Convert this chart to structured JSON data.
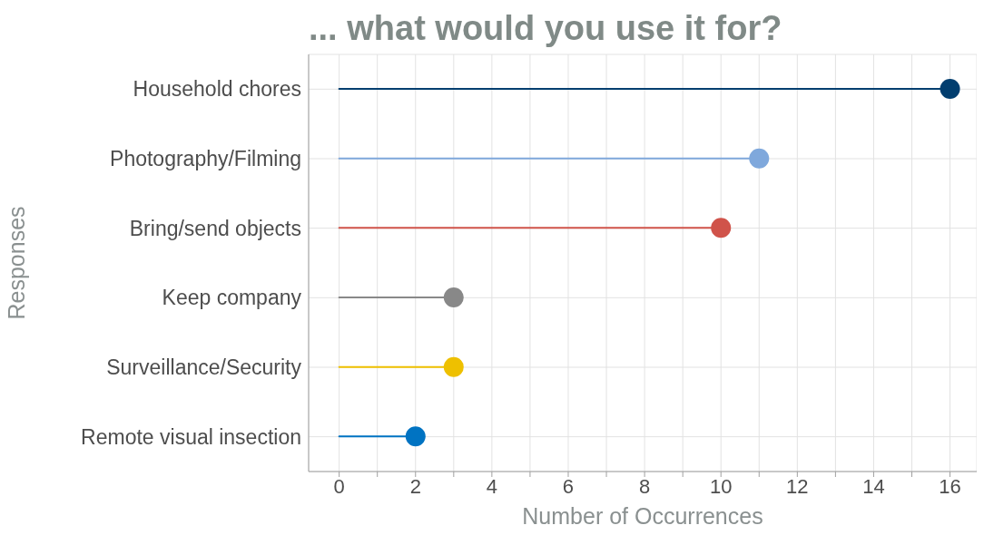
{
  "chart_data": {
    "type": "lollipop",
    "orientation": "horizontal",
    "title": "... what would you use it for?",
    "xlabel": "Number of Occurrences",
    "ylabel": "Responses",
    "categories": [
      "Household chores",
      "Photography/Filming",
      "Bring/send objects",
      "Keep company",
      "Surveillance/Security",
      "Remote visual insection"
    ],
    "values": [
      16,
      11,
      10,
      3,
      3,
      2
    ],
    "colors": [
      "#023e6f",
      "#7fa8dc",
      "#d0534a",
      "#888888",
      "#eec000",
      "#0073c2"
    ],
    "xlim": [
      -0.8,
      16.7
    ],
    "xticks": [
      0,
      {
        "value": 1,
        "label": null
      },
      2,
      {
        "value": 3,
        "label": null
      },
      4,
      {
        "value": 5,
        "label": null
      },
      6,
      {
        "value": 7,
        "label": null
      },
      8,
      {
        "value": 9,
        "label": null
      },
      10,
      {
        "value": 11,
        "label": null
      },
      12,
      {
        "value": 13,
        "label": null
      },
      14,
      {
        "value": 15,
        "label": null
      },
      16
    ],
    "grid": true,
    "marker": "circle",
    "line_style": "solid"
  }
}
